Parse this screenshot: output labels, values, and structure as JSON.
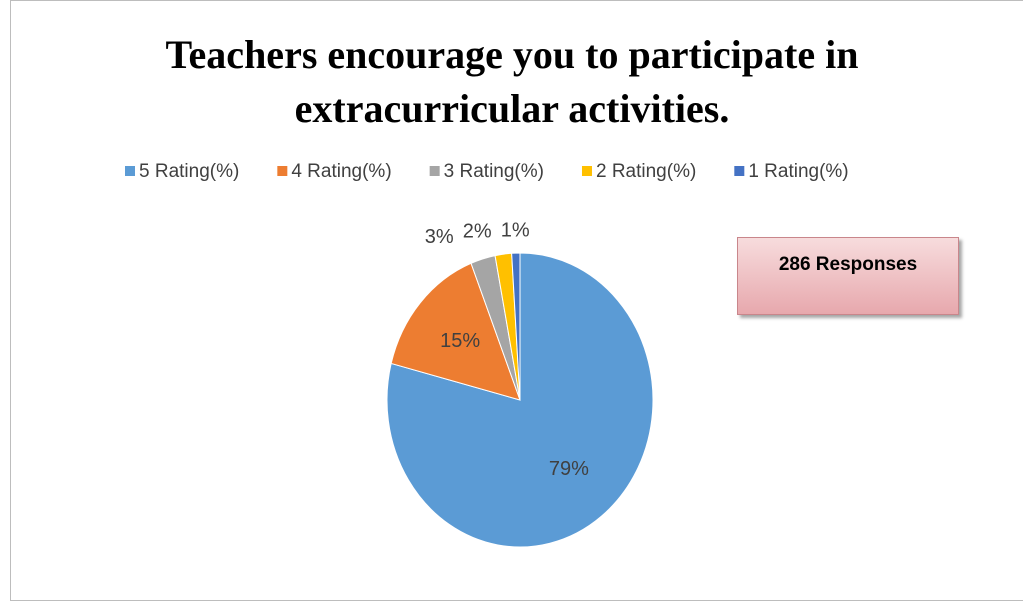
{
  "chart_data": {
    "type": "pie",
    "title": "Teachers encourage you to participate in extracurricular activities.",
    "categories": [
      "5 Rating(%)",
      "4 Rating(%)",
      "3 Rating(%)",
      "2 Rating(%)",
      "1 Rating(%)"
    ],
    "values": [
      79,
      15,
      3,
      2,
      1
    ],
    "value_labels": [
      "79%",
      "15%",
      "3%",
      "2%",
      "1%"
    ],
    "colors": [
      "#5b9bd5",
      "#ed7d31",
      "#a5a5a5",
      "#ffc000",
      "#4472c4"
    ],
    "legend": "top",
    "annotation": "286 Responses"
  }
}
